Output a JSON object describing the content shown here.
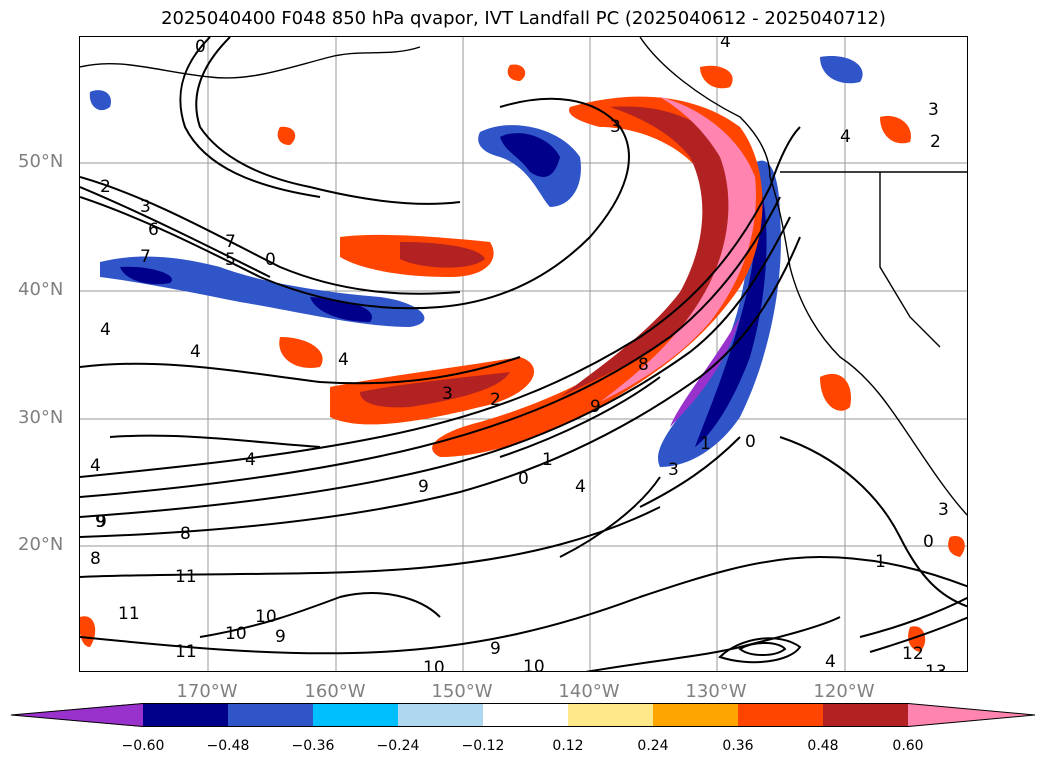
{
  "title": "2025040400 F048 850 hPa qvapor, IVT Landfall PC (2025040612 - 2025040712)",
  "latitude_labels": [
    "50°N",
    "40°N",
    "30°N",
    "20°N"
  ],
  "longitude_labels": [
    "170°W",
    "160°W",
    "150°W",
    "140°W",
    "130°W",
    "120°W"
  ],
  "colorbar": {
    "colors": [
      "#9932cc",
      "#00008b",
      "#3055c8",
      "#00bfff",
      "#add8f0",
      "#ffffff",
      "#ffe88a",
      "#ffa500",
      "#ff4500",
      "#b22222",
      "#ff85b0"
    ],
    "tick_labels": [
      "−0.60",
      "−0.48",
      "−0.36",
      "−0.24",
      "−0.12",
      "0.12",
      "0.24",
      "0.36",
      "0.48",
      "0.60"
    ]
  },
  "contour_labels": [
    "0",
    "4",
    "2",
    "3",
    "4",
    "3",
    "3",
    "2",
    "6",
    "7",
    "4",
    "7",
    "0",
    "5",
    "4",
    "4",
    "3",
    "2",
    "9",
    "8",
    "9",
    "0",
    "1",
    "4",
    "9",
    "1",
    "0",
    "3",
    "8",
    "4",
    "9",
    "8",
    "11",
    "11",
    "10",
    "10",
    "9",
    "11",
    "10",
    "9",
    "10",
    "12",
    "13",
    "1",
    "0",
    "3",
    "4",
    "4"
  ]
}
